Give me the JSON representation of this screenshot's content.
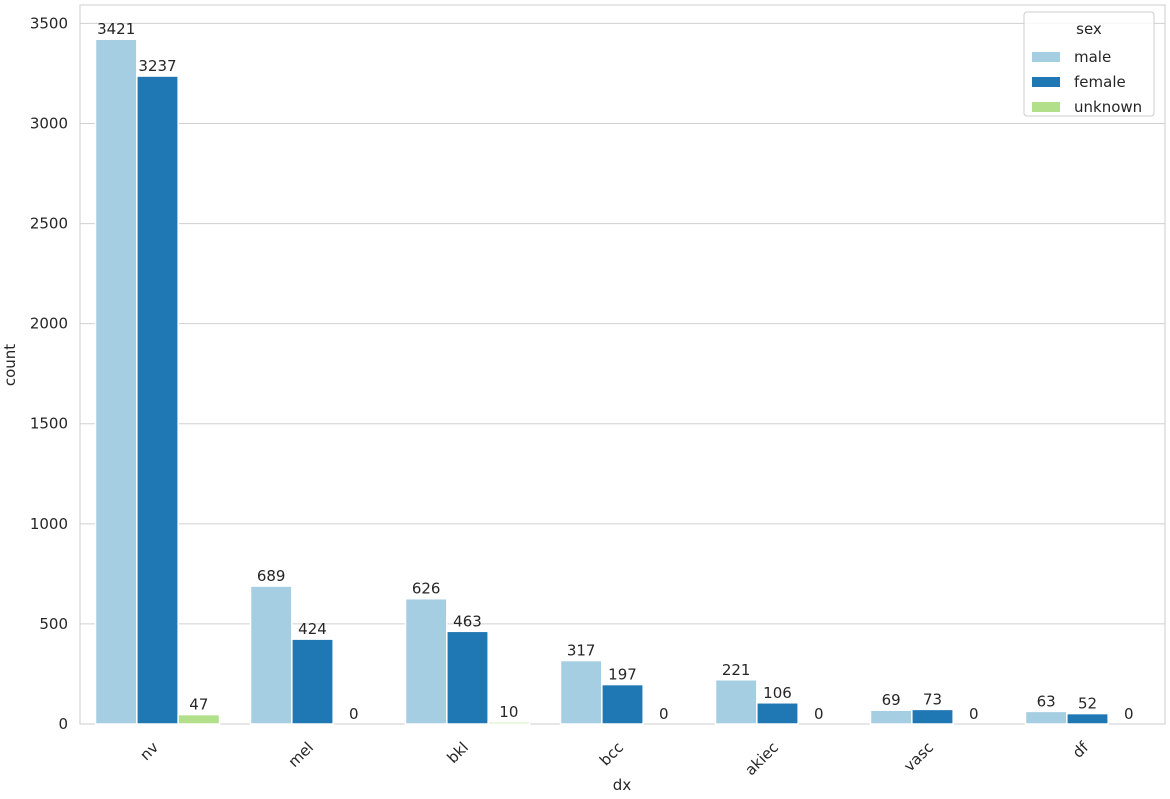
{
  "chart_data": {
    "type": "bar",
    "x_label": "dx",
    "y_label": "count",
    "categories": [
      "nv",
      "mel",
      "bkl",
      "bcc",
      "akiec",
      "vasc",
      "df"
    ],
    "series": [
      {
        "name": "male",
        "color": "#a6cee3",
        "values": [
          3421,
          689,
          626,
          317,
          221,
          69,
          63
        ]
      },
      {
        "name": "female",
        "color": "#1f78b4",
        "values": [
          3237,
          424,
          463,
          197,
          106,
          73,
          52
        ]
      },
      {
        "name": "unknown",
        "color": "#b2df8a",
        "values": [
          47,
          0,
          10,
          0,
          0,
          0,
          0
        ]
      }
    ],
    "legend_title": "sex",
    "legend_position": "upper right",
    "ylim": [
      0,
      3592
    ],
    "yticks": [
      0,
      500,
      1000,
      1500,
      2000,
      2500,
      3000,
      3500
    ],
    "grid": true
  }
}
